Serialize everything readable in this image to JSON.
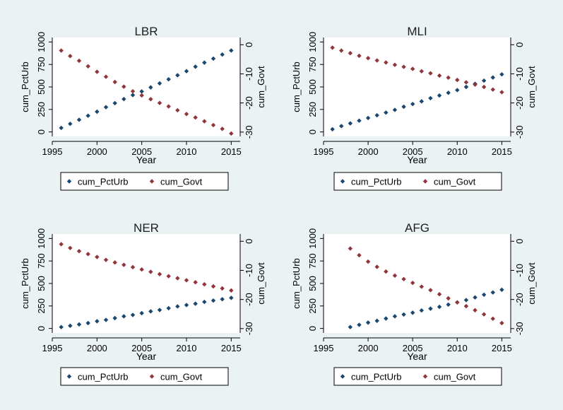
{
  "chart_data": [
    {
      "type": "scatter",
      "title": "LBR",
      "xlabel": "Year",
      "ylabel": "cum_PctUrb",
      "y2label": "cum_Govt",
      "xlim": [
        1995,
        2016
      ],
      "xticks": [
        "1995",
        "2000",
        "2005",
        "2010",
        "2015"
      ],
      "ylim": [
        -50,
        1050
      ],
      "yticks": [
        "0",
        "250",
        "500",
        "750",
        "1000"
      ],
      "y2lim": [
        -31.5,
        2.5
      ],
      "y2ticks": [
        "0",
        "-10",
        "-20",
        "-30"
      ],
      "x": [
        1996,
        1997,
        1998,
        1999,
        2000,
        2001,
        2002,
        2003,
        2004,
        2005,
        2006,
        2007,
        2008,
        2009,
        2010,
        2011,
        2012,
        2013,
        2014,
        2015
      ],
      "series": [
        {
          "name": "cum_PctUrb",
          "axis": "left",
          "color": "#1a476f",
          "values": [
            45,
            90,
            135,
            180,
            225,
            275,
            320,
            365,
            410,
            450,
            495,
            540,
            585,
            630,
            675,
            725,
            770,
            815,
            860,
            905
          ]
        },
        {
          "name": "cum_Govt",
          "axis": "right",
          "color": "#90353b",
          "values": [
            -2,
            -3.9,
            -5.5,
            -7.4,
            -9.3,
            -11,
            -12.8,
            -14.4,
            -16,
            -17.4,
            -18.7,
            -20,
            -21.2,
            -22.5,
            -23.8,
            -25,
            -26.3,
            -27.6,
            -28.9,
            -30.5
          ]
        }
      ],
      "legend": "bottom"
    },
    {
      "type": "scatter",
      "title": "MLI",
      "xlabel": "Year",
      "ylabel": "cum_PctUrb",
      "y2label": "cum_Govt",
      "xlim": [
        1995,
        2016
      ],
      "xticks": [
        "1995",
        "2000",
        "2005",
        "2010",
        "2015"
      ],
      "ylim": [
        -50,
        1050
      ],
      "yticks": [
        "0",
        "250",
        "500",
        "750",
        "1000"
      ],
      "y2lim": [
        -31.5,
        2.5
      ],
      "y2ticks": [
        "0",
        "-10",
        "-20",
        "-30"
      ],
      "x": [
        1996,
        1997,
        1998,
        1999,
        2000,
        2001,
        2002,
        2003,
        2004,
        2005,
        2006,
        2007,
        2008,
        2009,
        2010,
        2011,
        2012,
        2013,
        2014,
        2015
      ],
      "series": [
        {
          "name": "cum_PctUrb",
          "axis": "left",
          "color": "#1a476f",
          "values": [
            30,
            65,
            95,
            125,
            155,
            185,
            215,
            245,
            280,
            310,
            340,
            375,
            405,
            435,
            465,
            500,
            535,
            570,
            605,
            640
          ]
        },
        {
          "name": "cum_Govt",
          "axis": "right",
          "color": "#90353b",
          "values": [
            -1,
            -2,
            -2.9,
            -3.8,
            -4.6,
            -5.4,
            -6.1,
            -6.9,
            -7.6,
            -8.3,
            -9.1,
            -9.8,
            -10.6,
            -11.3,
            -12.1,
            -12.9,
            -13.7,
            -14.5,
            -15.4,
            -16.3
          ]
        }
      ],
      "legend": "bottom"
    },
    {
      "type": "scatter",
      "title": "NER",
      "xlabel": "Year",
      "ylabel": "cum_PctUrb",
      "y2label": "cum_Govt",
      "xlim": [
        1995,
        2016
      ],
      "xticks": [
        "1995",
        "2000",
        "2005",
        "2010",
        "2015"
      ],
      "ylim": [
        -50,
        1050
      ],
      "yticks": [
        "0",
        "250",
        "500",
        "750",
        "1000"
      ],
      "y2lim": [
        -31.5,
        2.5
      ],
      "y2ticks": [
        "0",
        "-10",
        "-20",
        "-30"
      ],
      "x": [
        1996,
        1997,
        1998,
        1999,
        2000,
        2001,
        2002,
        2003,
        2004,
        2005,
        2006,
        2007,
        2008,
        2009,
        2010,
        2011,
        2012,
        2013,
        2014,
        2015
      ],
      "series": [
        {
          "name": "cum_PctUrb",
          "axis": "left",
          "color": "#1a476f",
          "values": [
            15,
            30,
            45,
            60,
            80,
            95,
            115,
            135,
            150,
            170,
            190,
            205,
            225,
            245,
            260,
            275,
            295,
            310,
            325,
            340
          ]
        },
        {
          "name": "cum_Govt",
          "axis": "right",
          "color": "#90353b",
          "values": [
            -1,
            -2.3,
            -3.4,
            -4.4,
            -5.4,
            -6.4,
            -7.3,
            -8.1,
            -8.9,
            -9.7,
            -10.5,
            -11.3,
            -12,
            -12.7,
            -13.4,
            -14.1,
            -14.8,
            -15.5,
            -16.2,
            -16.9
          ]
        }
      ],
      "legend": "bottom"
    },
    {
      "type": "scatter",
      "title": "AFG",
      "xlabel": "Year",
      "ylabel": "cum_PctUrb",
      "y2label": "cum_Govt",
      "xlim": [
        1995,
        2016
      ],
      "xticks": [
        "1995",
        "2000",
        "2005",
        "2010",
        "2015"
      ],
      "ylim": [
        -50,
        1050
      ],
      "yticks": [
        "0",
        "250",
        "500",
        "750",
        "1000"
      ],
      "y2lim": [
        -31.5,
        2.5
      ],
      "y2ticks": [
        "0",
        "-10",
        "-20",
        "-30"
      ],
      "x": [
        1998,
        1999,
        2000,
        2001,
        2002,
        2003,
        2004,
        2005,
        2006,
        2007,
        2008,
        2009,
        2010,
        2011,
        2012,
        2013,
        2014,
        2015
      ],
      "series": [
        {
          "name": "cum_PctUrb",
          "axis": "left",
          "color": "#1a476f",
          "values": [
            15,
            40,
            65,
            85,
            110,
            135,
            155,
            175,
            200,
            220,
            240,
            265,
            290,
            315,
            345,
            375,
            400,
            430
          ]
        },
        {
          "name": "cum_Govt",
          "axis": "right",
          "color": "#90353b",
          "values": [
            -2.5,
            -4.8,
            -7,
            -8.8,
            -10.4,
            -11.8,
            -13,
            -14.3,
            -15.6,
            -16.8,
            -18.2,
            -19.6,
            -21,
            -22.3,
            -23.7,
            -25.1,
            -26.6,
            -28.1
          ]
        }
      ],
      "legend": "bottom"
    }
  ],
  "colors": {
    "background": "#eaf2f3",
    "plot_background": "#ffffff",
    "series1": "#1a476f",
    "series2": "#90353b"
  }
}
